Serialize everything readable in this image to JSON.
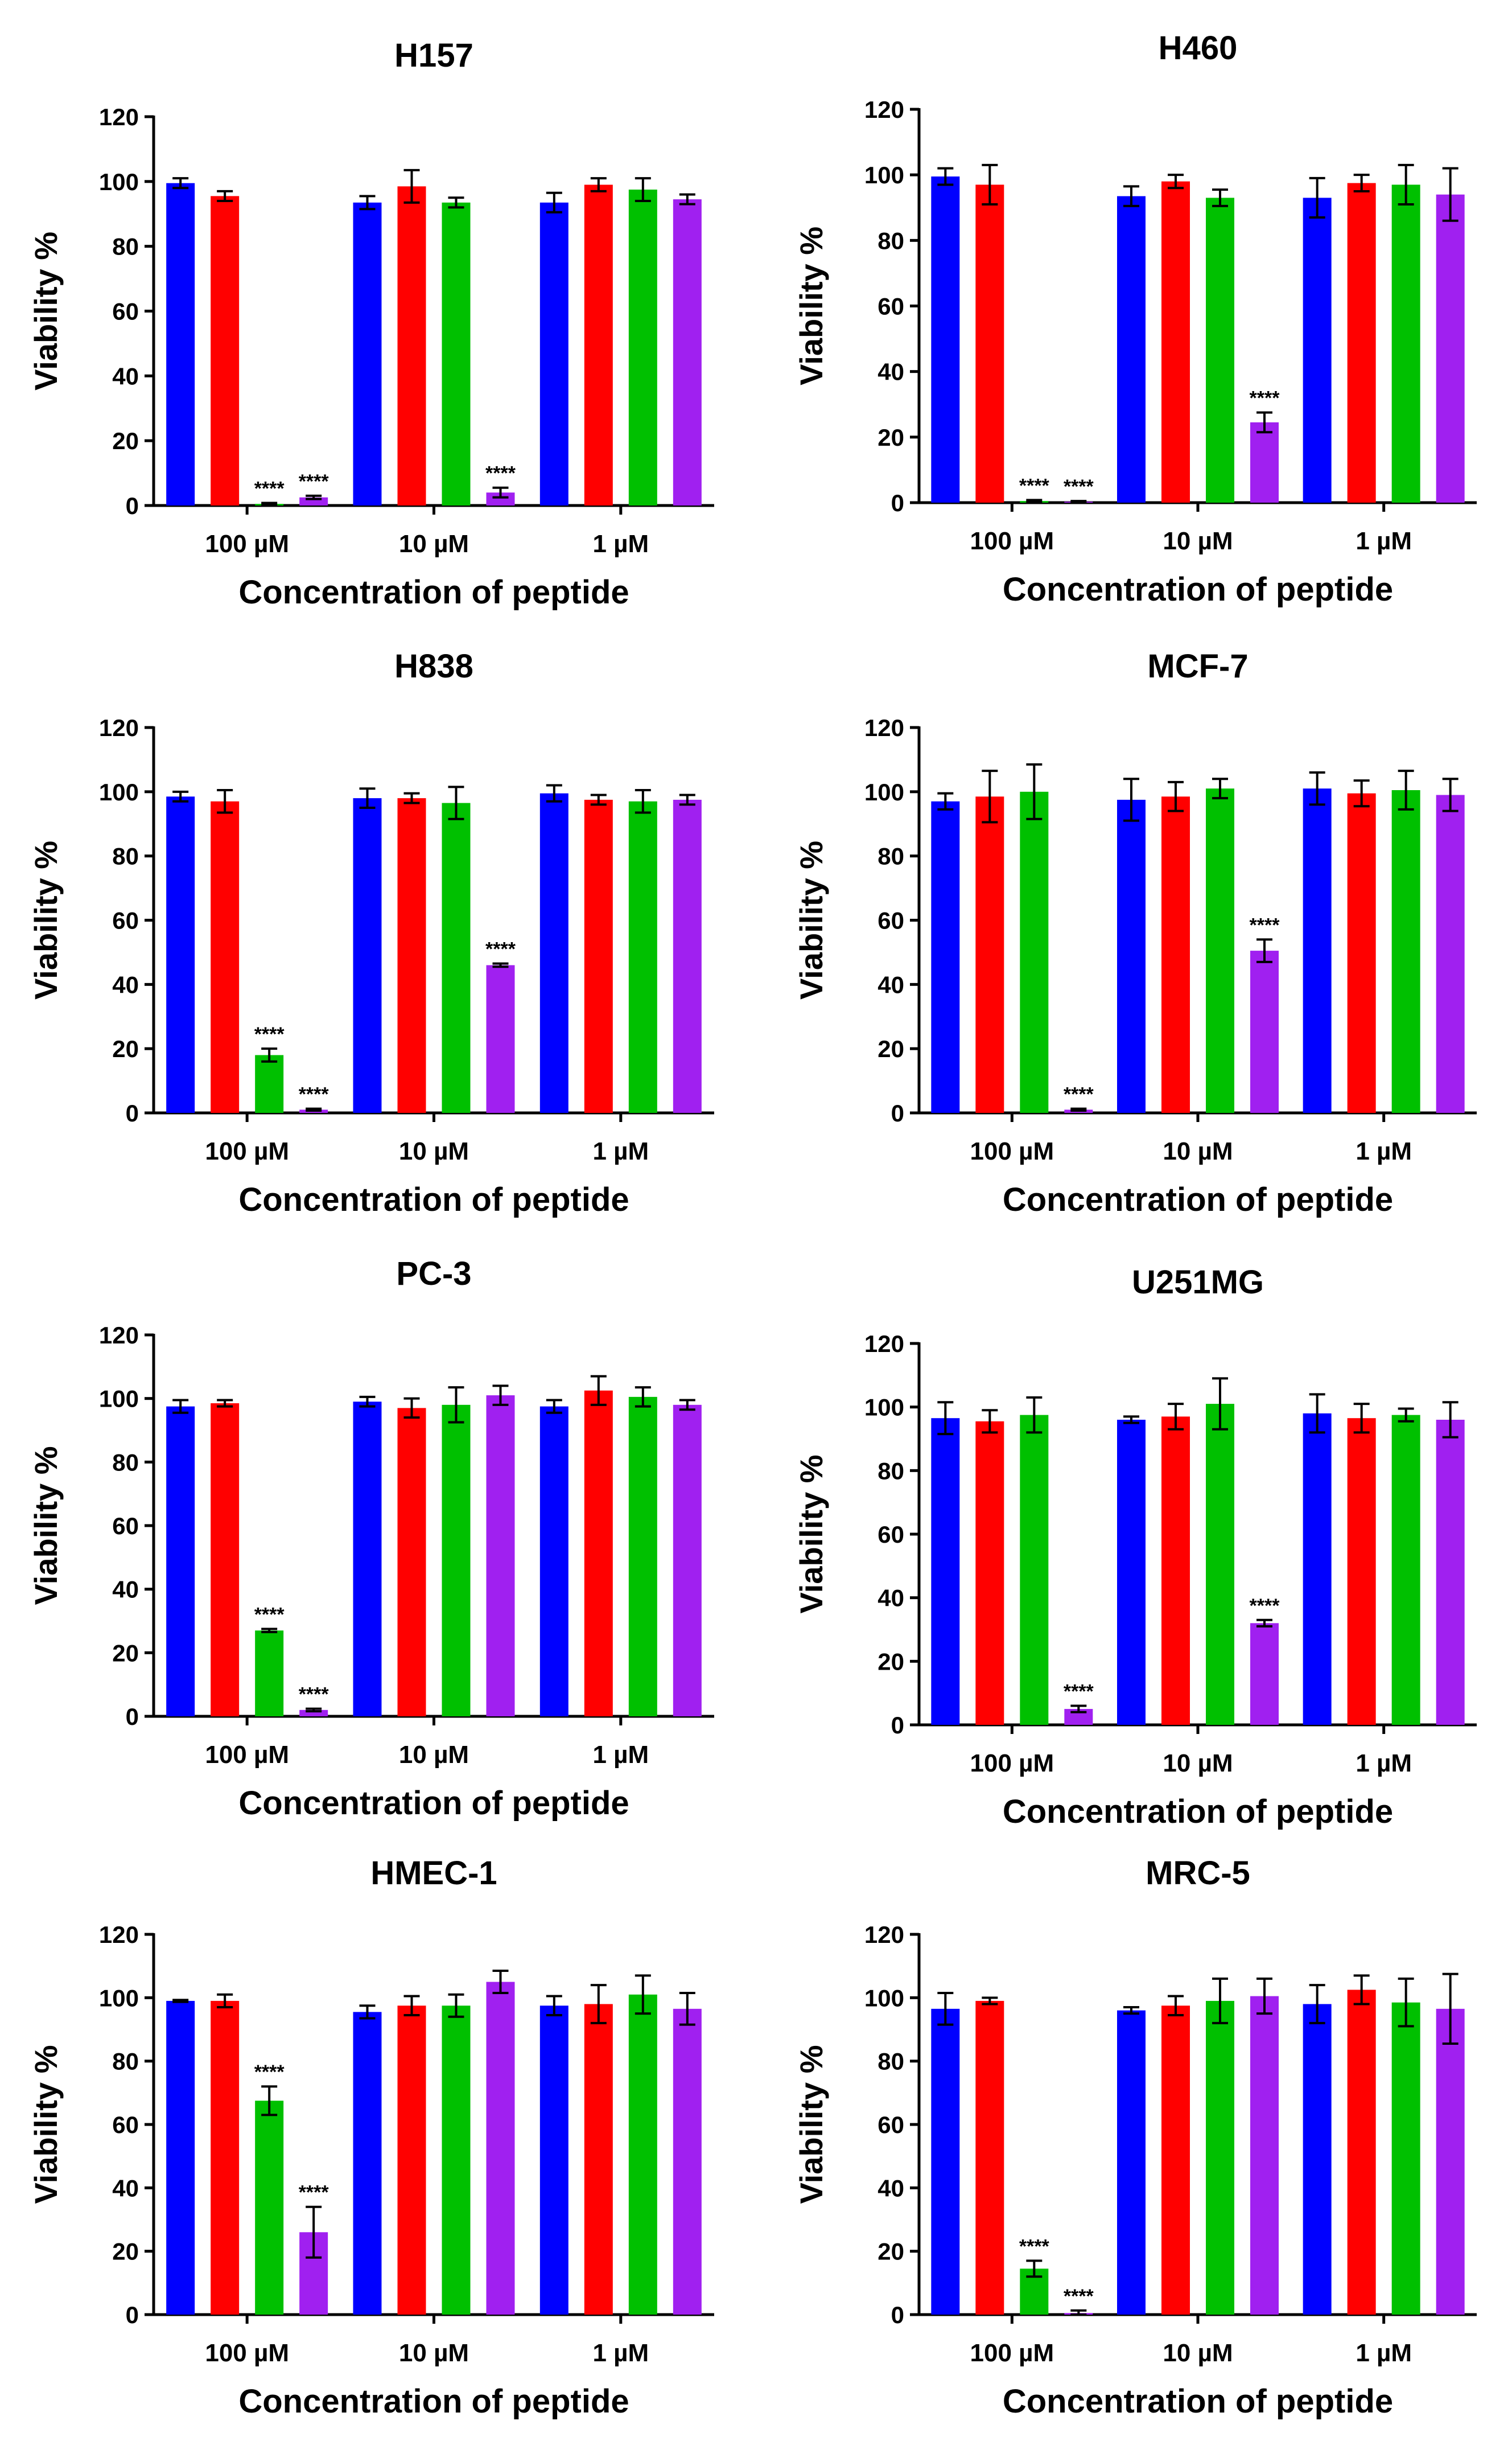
{
  "figure": {
    "series_colors": [
      "#0000ff",
      "#ff0000",
      "#00c000",
      "#a020f0"
    ]
  },
  "chart_data": [
    {
      "type": "bar",
      "title": "H157",
      "xlabel": "Concentration of peptide",
      "ylabel": "Viability %",
      "categories": [
        "100 µM",
        "10 µM",
        "1 µM"
      ],
      "ylim": [
        0,
        120
      ],
      "yticks": [
        0,
        20,
        40,
        60,
        80,
        100,
        120
      ],
      "series": [
        {
          "values": [
            99.5,
            93.5,
            93.5
          ],
          "errors": [
            1.5,
            2.0,
            3.0
          ],
          "sig": [
            "",
            "",
            ""
          ]
        },
        {
          "values": [
            95.5,
            98.5,
            99.0
          ],
          "errors": [
            1.5,
            5.0,
            2.0
          ],
          "sig": [
            "",
            "",
            ""
          ]
        },
        {
          "values": [
            0.5,
            93.5,
            97.5
          ],
          "errors": [
            0.3,
            1.5,
            3.5
          ],
          "sig": [
            "****",
            "",
            ""
          ]
        },
        {
          "values": [
            2.5,
            4.0,
            94.5
          ],
          "errors": [
            0.5,
            1.5,
            1.5
          ],
          "sig": [
            "****",
            "****",
            ""
          ]
        }
      ]
    },
    {
      "type": "bar",
      "title": "H460",
      "xlabel": "Concentration of peptide",
      "ylabel": "Viability %",
      "categories": [
        "100 µM",
        "10 µM",
        "1 µM"
      ],
      "ylim": [
        0,
        120
      ],
      "yticks": [
        0,
        20,
        40,
        60,
        80,
        100,
        120
      ],
      "series": [
        {
          "values": [
            99.5,
            93.5,
            93.0
          ],
          "errors": [
            2.5,
            3.0,
            6.0
          ],
          "sig": [
            "",
            "",
            ""
          ]
        },
        {
          "values": [
            97.0,
            98.0,
            97.5
          ],
          "errors": [
            6.0,
            2.0,
            2.5
          ],
          "sig": [
            "",
            "",
            ""
          ]
        },
        {
          "values": [
            0.5,
            93.0,
            97.0
          ],
          "errors": [
            0.3,
            2.5,
            6.0
          ],
          "sig": [
            "****",
            "",
            ""
          ]
        },
        {
          "values": [
            0.3,
            24.5,
            94.0
          ],
          "errors": [
            0.2,
            3.0,
            8.0
          ],
          "sig": [
            "****",
            "****",
            ""
          ]
        }
      ]
    },
    {
      "type": "bar",
      "title": "H838",
      "xlabel": "Concentration of peptide",
      "ylabel": "Viability %",
      "categories": [
        "100 µM",
        "10 µM",
        "1 µM"
      ],
      "ylim": [
        0,
        120
      ],
      "yticks": [
        0,
        20,
        40,
        60,
        80,
        100,
        120
      ],
      "series": [
        {
          "values": [
            98.5,
            98.0,
            99.5
          ],
          "errors": [
            1.5,
            3.0,
            2.5
          ],
          "sig": [
            "",
            "",
            ""
          ]
        },
        {
          "values": [
            97.0,
            98.0,
            97.5
          ],
          "errors": [
            3.5,
            1.5,
            1.5
          ],
          "sig": [
            "",
            "",
            ""
          ]
        },
        {
          "values": [
            18.0,
            96.5,
            97.0
          ],
          "errors": [
            2.0,
            5.0,
            3.5
          ],
          "sig": [
            "****",
            "",
            ""
          ]
        },
        {
          "values": [
            1.0,
            46.0,
            97.5
          ],
          "errors": [
            0.3,
            0.5,
            1.5
          ],
          "sig": [
            "****",
            "****",
            ""
          ]
        }
      ]
    },
    {
      "type": "bar",
      "title": "MCF-7",
      "xlabel": "Concentration of peptide",
      "ylabel": "Viability %",
      "categories": [
        "100 µM",
        "10 µM",
        "1 µM"
      ],
      "ylim": [
        0,
        120
      ],
      "yticks": [
        0,
        20,
        40,
        60,
        80,
        100,
        120
      ],
      "series": [
        {
          "values": [
            97.0,
            97.5,
            101.0
          ],
          "errors": [
            2.5,
            6.5,
            5.0
          ],
          "sig": [
            "",
            "",
            ""
          ]
        },
        {
          "values": [
            98.5,
            98.5,
            99.5
          ],
          "errors": [
            8.0,
            4.5,
            4.0
          ],
          "sig": [
            "",
            "",
            ""
          ]
        },
        {
          "values": [
            100.0,
            101.0,
            100.5
          ],
          "errors": [
            8.5,
            3.0,
            6.0
          ],
          "sig": [
            "",
            "",
            ""
          ]
        },
        {
          "values": [
            1.0,
            50.5,
            99.0
          ],
          "errors": [
            0.3,
            3.5,
            5.0
          ],
          "sig": [
            "****",
            "****",
            ""
          ]
        }
      ]
    },
    {
      "type": "bar",
      "title": "PC-3",
      "xlabel": "Concentration of peptide",
      "ylabel": "Viability %",
      "categories": [
        "100 µM",
        "10 µM",
        "1 µM"
      ],
      "ylim": [
        0,
        120
      ],
      "yticks": [
        0,
        20,
        40,
        60,
        80,
        100,
        120
      ],
      "series": [
        {
          "values": [
            97.5,
            99.0,
            97.5
          ],
          "errors": [
            2.0,
            1.5,
            2.0
          ],
          "sig": [
            "",
            "",
            ""
          ]
        },
        {
          "values": [
            98.5,
            97.0,
            102.5
          ],
          "errors": [
            1.0,
            3.0,
            4.5
          ],
          "sig": [
            "",
            "",
            ""
          ]
        },
        {
          "values": [
            27.0,
            98.0,
            100.5
          ],
          "errors": [
            0.5,
            5.5,
            3.0
          ],
          "sig": [
            "****",
            "",
            ""
          ]
        },
        {
          "values": [
            2.0,
            101.0,
            98.0
          ],
          "errors": [
            0.4,
            3.0,
            1.5
          ],
          "sig": [
            "****",
            "",
            ""
          ]
        }
      ]
    },
    {
      "type": "bar",
      "title": "U251MG",
      "xlabel": "Concentration of peptide",
      "ylabel": "Viability %",
      "categories": [
        "100 µM",
        "10 µM",
        "1 µM"
      ],
      "ylim": [
        0,
        120
      ],
      "yticks": [
        0,
        20,
        40,
        60,
        80,
        100,
        120
      ],
      "series": [
        {
          "values": [
            96.5,
            96.0,
            98.0
          ],
          "errors": [
            5.0,
            1.0,
            6.0
          ],
          "sig": [
            "",
            "",
            ""
          ]
        },
        {
          "values": [
            95.5,
            97.0,
            96.5
          ],
          "errors": [
            3.5,
            4.0,
            4.5
          ],
          "sig": [
            "",
            "",
            ""
          ]
        },
        {
          "values": [
            97.5,
            101.0,
            97.5
          ],
          "errors": [
            5.5,
            8.0,
            2.0
          ],
          "sig": [
            "",
            "",
            ""
          ]
        },
        {
          "values": [
            5.0,
            32.0,
            96.0
          ],
          "errors": [
            1.0,
            1.0,
            5.5
          ],
          "sig": [
            "****",
            "****",
            ""
          ]
        }
      ]
    },
    {
      "type": "bar",
      "title": "HMEC-1",
      "xlabel": "Concentration of peptide",
      "ylabel": "Viability %",
      "categories": [
        "100 µM",
        "10 µM",
        "1 µM"
      ],
      "ylim": [
        0,
        120
      ],
      "yticks": [
        0,
        20,
        40,
        60,
        80,
        100,
        120
      ],
      "series": [
        {
          "values": [
            99.0,
            95.5,
            97.5
          ],
          "errors": [
            0.3,
            2.0,
            3.0
          ],
          "sig": [
            "",
            "",
            ""
          ]
        },
        {
          "values": [
            99.0,
            97.5,
            98.0
          ],
          "errors": [
            2.0,
            3.0,
            6.0
          ],
          "sig": [
            "",
            "",
            ""
          ]
        },
        {
          "values": [
            67.5,
            97.5,
            101.0
          ],
          "errors": [
            4.5,
            3.5,
            6.0
          ],
          "sig": [
            "****",
            "",
            ""
          ]
        },
        {
          "values": [
            26.0,
            105.0,
            96.5
          ],
          "errors": [
            8.0,
            3.5,
            5.0
          ],
          "sig": [
            "****",
            "",
            ""
          ]
        }
      ]
    },
    {
      "type": "bar",
      "title": "MRC-5",
      "xlabel": "Concentration of peptide",
      "ylabel": "Viability %",
      "categories": [
        "100 µM",
        "10 µM",
        "1 µM"
      ],
      "ylim": [
        0,
        120
      ],
      "yticks": [
        0,
        20,
        40,
        60,
        80,
        100,
        120
      ],
      "series": [
        {
          "values": [
            96.5,
            96.0,
            98.0
          ],
          "errors": [
            5.0,
            1.0,
            6.0
          ],
          "sig": [
            "",
            "",
            ""
          ]
        },
        {
          "values": [
            99.0,
            97.5,
            102.5
          ],
          "errors": [
            1.0,
            3.0,
            4.5
          ],
          "sig": [
            "",
            "",
            ""
          ]
        },
        {
          "values": [
            14.5,
            99.0,
            98.5
          ],
          "errors": [
            2.5,
            7.0,
            7.5
          ],
          "sig": [
            "****",
            "",
            ""
          ]
        },
        {
          "values": [
            0.5,
            100.5,
            96.5
          ],
          "errors": [
            0.8,
            5.5,
            11.0
          ],
          "sig": [
            "****",
            "",
            ""
          ]
        }
      ]
    }
  ]
}
